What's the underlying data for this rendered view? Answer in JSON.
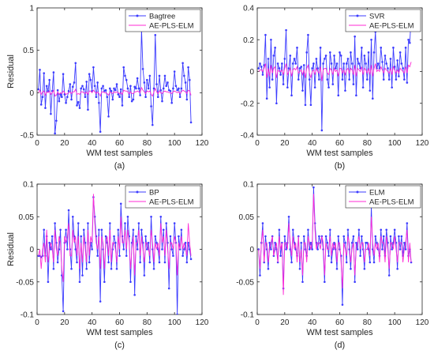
{
  "colors": {
    "blue": "#3b3bff",
    "magenta": "#ff2bd6",
    "axis": "#262626",
    "grid": "#dddddd"
  },
  "chart_data": [
    {
      "type": "line",
      "caption": "(a)",
      "xlabel": "WM test samples",
      "ylabel": "Residual",
      "xlim": [
        0,
        120
      ],
      "ylim": [
        -0.5,
        1
      ],
      "xticks": [
        0,
        20,
        40,
        60,
        80,
        100,
        120
      ],
      "yticks": [
        -0.5,
        0,
        0.5,
        1
      ],
      "ytick_labels": [
        "-0.5",
        "0",
        "0.5",
        "1"
      ],
      "legend_position": "top-right",
      "series": [
        {
          "name": "Bagtree",
          "color": "#3b3bff",
          "marker": true,
          "values": [
            0.04,
            0.27,
            -0.14,
            -0.05,
            0.23,
            -0.18,
            0.08,
            0.02,
            0.15,
            -0.25,
            0.02,
            0.24,
            -0.48,
            -0.33,
            0.03,
            -0.1,
            -0.02,
            -0.05,
            0.22,
            -0.02,
            -0.12,
            -0.05,
            0.02,
            0.1,
            -0.08,
            0.07,
            0.12,
            0.35,
            -0.15,
            -0.11,
            -0.18,
            0.05,
            0.08,
            0.04,
            -0.05,
            0.13,
            -0.2,
            0.22,
            0.15,
            0.02,
            0.3,
            0.08,
            -0.05,
            0.12,
            -0.12,
            -0.46,
            0.05,
            0.08,
            0.02,
            0.03,
            -0.05,
            -0.28,
            0.05,
            0.02,
            -0.08,
            0.05,
            0.03,
            0.1,
            -0.02,
            -0.05,
            0.04,
            -0.15,
            0.3,
            0.2,
            0.15,
            0.05,
            -0.05,
            0.08,
            -0.1,
            -0.08,
            0.07,
            0.05,
            0.17,
            0.05,
            -0.03,
            0.75,
            0.28,
            0.12,
            -0.05,
            0.15,
            0.05,
            0.2,
            -0.16,
            -0.38,
            0.05,
            0.68,
            0.1,
            -0.05,
            0.2,
            0.03,
            -0.1,
            0.05,
            0.2,
            0.08,
            0.12,
            0.03,
            0.02,
            -0.12,
            0.05,
            0.25,
            0.08,
            0.03,
            0.05,
            -0.05,
            0.05,
            0.35,
            0.2,
            0.12,
            -0.08,
            0.3,
            0.15,
            -0.35
          ]
        },
        {
          "name": "AE-PLS-ELM",
          "color": "#ff2bd6",
          "marker": false,
          "values": [
            0.0,
            0.03,
            -0.02,
            0.01,
            0.02,
            -0.03,
            0.01,
            0.0,
            0.02,
            -0.02,
            0.0,
            0.03,
            -0.04,
            -0.03,
            0.01,
            -0.02,
            0.0,
            -0.01,
            0.02,
            0.0,
            -0.02,
            -0.01,
            0.0,
            0.01,
            -0.01,
            0.01,
            0.01,
            0.04,
            -0.02,
            -0.01,
            -0.02,
            0.01,
            0.01,
            0.0,
            -0.01,
            0.01,
            -0.02,
            0.02,
            0.02,
            0.0,
            0.03,
            0.01,
            -0.01,
            0.01,
            -0.01,
            -0.04,
            0.01,
            0.01,
            0.0,
            0.0,
            -0.01,
            -0.03,
            0.01,
            0.0,
            -0.01,
            0.01,
            0.0,
            0.01,
            0.0,
            -0.01,
            0.0,
            -0.02,
            0.03,
            0.02,
            0.02,
            0.01,
            -0.01,
            0.01,
            -0.01,
            -0.01,
            0.01,
            0.01,
            0.02,
            0.01,
            0.0,
            0.06,
            0.03,
            0.01,
            -0.01,
            0.02,
            0.01,
            0.02,
            -0.02,
            -0.04,
            0.01,
            0.05,
            0.01,
            -0.01,
            0.02,
            0.0,
            -0.01,
            0.01,
            0.02,
            0.01,
            0.01,
            0.0,
            0.0,
            -0.01,
            0.01,
            0.02,
            0.01,
            0.0,
            0.01,
            -0.01,
            0.01,
            0.03,
            0.02,
            0.01,
            -0.01,
            0.03,
            0.02,
            -0.03
          ]
        }
      ]
    },
    {
      "type": "line",
      "caption": "(b)",
      "xlabel": "WM test samples",
      "ylabel": "",
      "xlim": [
        0,
        120
      ],
      "ylim": [
        -0.4,
        0.4
      ],
      "xticks": [
        0,
        20,
        40,
        60,
        80,
        100,
        120
      ],
      "yticks": [
        -0.4,
        -0.2,
        0,
        0.2,
        0.4
      ],
      "ytick_labels": [
        "-0.4",
        "-0.2",
        "0",
        "0.2",
        "0.4"
      ],
      "legend_position": "top-right",
      "series": [
        {
          "name": "SVR",
          "color": "#3b3bff",
          "marker": true,
          "values": [
            0.02,
            0.05,
            0.03,
            -0.02,
            0.04,
            0.23,
            -0.17,
            0.08,
            -0.1,
            0.2,
            -0.05,
            0.1,
            0.15,
            -0.2,
            0.05,
            0.02,
            -0.02,
            0.05,
            -0.08,
            0.08,
            0.26,
            -0.1,
            0.02,
            0.1,
            -0.15,
            0.05,
            0.08,
            0.05,
            0.15,
            -0.05,
            0.02,
            0.03,
            -0.12,
            0.04,
            -0.21,
            0.12,
            0.23,
            -0.05,
            -0.21,
            0.02,
            0.05,
            -0.1,
            0.08,
            0.02,
            -0.05,
            0.15,
            -0.37,
            0.05,
            0.08,
            0.1,
            -0.05,
            -0.1,
            0.12,
            0.05,
            -0.08,
            0.1,
            0.02,
            0.05,
            -0.15,
            0.12,
            0.1,
            -0.05,
            0.05,
            -0.12,
            0.05,
            0.08,
            -0.05,
            0.12,
            0.05,
            -0.08,
            0.22,
            -0.15,
            0.08,
            0.05,
            0.02,
            0.15,
            -0.1,
            0.1,
            0.05,
            -0.05,
            0.12,
            -0.12,
            0.2,
            -0.17,
            0.12,
            0.25,
            0.02,
            0.05,
            0.02,
            0.15,
            0.06,
            -0.05,
            0.1,
            0.05,
            0.02,
            -0.05,
            0.08,
            -0.1,
            0.15,
            0.03,
            -0.05,
            0.07,
            -0.03,
            0.12,
            0.05,
            0.02,
            -0.05,
            0.15,
            -0.07,
            0.2,
            0.18,
            0.35
          ]
        },
        {
          "name": "AE-PLS-ELM",
          "color": "#ff2bd6",
          "marker": false,
          "values": [
            0.0,
            0.01,
            0.01,
            0.0,
            0.02,
            0.05,
            -0.04,
            0.02,
            -0.03,
            0.04,
            -0.01,
            0.02,
            0.03,
            -0.04,
            0.01,
            0.0,
            0.0,
            0.01,
            -0.02,
            0.02,
            0.05,
            -0.02,
            0.0,
            0.02,
            -0.03,
            0.01,
            0.02,
            0.01,
            0.03,
            -0.01,
            0.0,
            0.01,
            -0.02,
            0.01,
            -0.04,
            0.02,
            0.04,
            -0.01,
            -0.04,
            0.0,
            0.01,
            -0.02,
            0.02,
            0.0,
            -0.01,
            0.03,
            -0.06,
            0.01,
            0.02,
            0.02,
            -0.01,
            -0.02,
            0.02,
            0.01,
            -0.02,
            0.02,
            0.0,
            0.01,
            -0.03,
            0.02,
            0.02,
            -0.01,
            0.01,
            -0.02,
            0.01,
            0.02,
            -0.01,
            0.02,
            0.01,
            -0.02,
            0.04,
            -0.03,
            0.02,
            0.01,
            0.0,
            0.03,
            -0.02,
            0.02,
            0.01,
            -0.01,
            0.02,
            -0.02,
            0.04,
            -0.03,
            0.02,
            0.05,
            0.0,
            0.01,
            0.0,
            0.03,
            0.01,
            -0.01,
            0.02,
            0.01,
            0.0,
            -0.01,
            0.02,
            -0.02,
            0.03,
            0.01,
            -0.01,
            0.01,
            -0.01,
            0.02,
            0.01,
            0.0,
            -0.01,
            0.03,
            -0.01,
            0.04,
            0.03,
            0.06
          ]
        }
      ]
    },
    {
      "type": "line",
      "caption": "(c)",
      "xlabel": "WM test samples",
      "ylabel": "Residual",
      "xlim": [
        0,
        120
      ],
      "ylim": [
        -0.1,
        0.1
      ],
      "xticks": [
        0,
        20,
        40,
        60,
        80,
        100,
        120
      ],
      "yticks": [
        -0.1,
        -0.05,
        0,
        0.05,
        0.1
      ],
      "ytick_labels": [
        "-0.1",
        "-0.05",
        "0",
        "0.05",
        "0.1"
      ],
      "legend_position": "top-right",
      "series": [
        {
          "name": "BP",
          "color": "#3b3bff",
          "marker": true,
          "values": [
            -0.01,
            -0.01,
            -0.012,
            -0.01,
            0.03,
            -0.01,
            0.02,
            -0.05,
            0.01,
            0.0,
            0.02,
            -0.03,
            0.04,
            0.01,
            -0.02,
            0.0,
            0.03,
            -0.04,
            -0.095,
            0.01,
            0.03,
            0.0,
            0.06,
            0.0,
            -0.03,
            0.05,
            0.02,
            0.0,
            -0.02,
            0.04,
            -0.05,
            0.02,
            -0.04,
            0.03,
            0.01,
            -0.03,
            0.04,
            -0.02,
            0.01,
            0.0,
            0.08,
            0.05,
            0.02,
            -0.01,
            0.03,
            -0.08,
            0.03,
            0.0,
            -0.05,
            0.02,
            0.01,
            -0.02,
            0.04,
            -0.03,
            0.0,
            0.02,
            0.01,
            -0.03,
            0.03,
            -0.01,
            0.07,
            0.02,
            0.0,
            0.04,
            -0.01,
            0.05,
            0.02,
            -0.05,
            0.01,
            0.03,
            -0.07,
            0.02,
            0.0,
            0.04,
            -0.02,
            0.03,
            0.01,
            -0.04,
            0.02,
            0.0,
            0.01,
            -0.02,
            0.05,
            0.0,
            -0.03,
            0.02,
            0.01,
            0.0,
            -0.02,
            0.05,
            0.0,
            0.03,
            -0.02,
            0.04,
            0.01,
            -0.06,
            0.02,
            0.0,
            -0.01,
            0.04,
            0.01,
            -0.1,
            0.02,
            0.0,
            0.03,
            -0.01,
            0.0,
            0.01,
            -0.02,
            0.01,
            0.0,
            -0.015
          ]
        },
        {
          "name": "AE-PLS-ELM",
          "color": "#ff2bd6",
          "marker": false,
          "values": [
            -0.01,
            0.0,
            -0.03,
            0.0,
            0.01,
            -0.02,
            0.03,
            -0.02,
            0.0,
            0.01,
            0.0,
            -0.02,
            0.03,
            0.0,
            -0.01,
            0.02,
            0.01,
            -0.03,
            -0.05,
            0.02,
            0.01,
            0.02,
            0.04,
            -0.01,
            -0.01,
            0.03,
            0.01,
            0.02,
            -0.01,
            0.02,
            -0.03,
            0.01,
            -0.02,
            0.02,
            0.0,
            -0.02,
            0.03,
            -0.01,
            0.02,
            0.01,
            0.085,
            0.04,
            0.01,
            0.0,
            0.02,
            -0.03,
            0.02,
            0.01,
            -0.03,
            0.01,
            0.02,
            -0.01,
            0.03,
            -0.02,
            0.01,
            0.01,
            0.0,
            -0.02,
            0.02,
            0.0,
            0.05,
            0.01,
            0.01,
            0.03,
            0.0,
            0.03,
            0.01,
            -0.03,
            0.0,
            0.02,
            -0.04,
            0.01,
            0.01,
            0.03,
            -0.01,
            0.02,
            0.0,
            -0.02,
            0.01,
            0.01,
            0.0,
            -0.01,
            0.03,
            0.01,
            -0.02,
            0.01,
            0.0,
            0.01,
            -0.01,
            0.04,
            0.01,
            0.02,
            -0.01,
            0.03,
            0.0,
            -0.03,
            0.01,
            0.01,
            0.0,
            0.02,
            0.01,
            -0.04,
            0.01,
            0.0,
            0.02,
            0.0,
            0.01,
            0.0,
            -0.01,
            0.04,
            0.01,
            -0.01
          ]
        }
      ]
    },
    {
      "type": "line",
      "caption": "(d)",
      "xlabel": "WM test samples",
      "ylabel": "",
      "xlim": [
        0,
        120
      ],
      "ylim": [
        -0.1,
        0.1
      ],
      "xticks": [
        0,
        20,
        40,
        60,
        80,
        100,
        120
      ],
      "yticks": [
        -0.1,
        -0.05,
        0,
        0.05,
        0.1
      ],
      "ytick_labels": [
        "-0.1",
        "-0.05",
        "0",
        "0.05",
        "0.1"
      ],
      "legend_position": "top-right",
      "series": [
        {
          "name": "ELM",
          "color": "#3b3bff",
          "marker": true,
          "values": [
            0.0,
            -0.04,
            0.01,
            0.04,
            -0.02,
            0.02,
            0.0,
            -0.03,
            0.01,
            0.0,
            0.02,
            -0.01,
            0.01,
            0.0,
            -0.02,
            0.03,
            -0.01,
            0.01,
            -0.06,
            0.02,
            0.0,
            0.01,
            0.05,
            0.0,
            -0.02,
            0.03,
            0.01,
            0.0,
            -0.01,
            0.02,
            -0.03,
            0.01,
            -0.05,
            0.02,
            0.0,
            -0.01,
            0.03,
            0.0,
            0.01,
            0.0,
            0.095,
            0.04,
            0.01,
            0.0,
            0.02,
            0.01,
            0.02,
            0.0,
            -0.05,
            0.02,
            0.01,
            -0.01,
            0.03,
            -0.02,
            0.0,
            0.01,
            0.0,
            -0.03,
            0.02,
            0.0,
            -0.01,
            -0.085,
            0.02,
            0.01,
            -0.02,
            0.03,
            0.0,
            -0.03,
            0.01,
            0.02,
            -0.05,
            0.01,
            0.0,
            0.03,
            -0.01,
            0.02,
            0.0,
            -0.03,
            0.01,
            0.01,
            0.0,
            -0.02,
            0.065,
            0.0,
            -0.02,
            0.02,
            0.01,
            0.0,
            -0.01,
            0.03,
            0.0,
            0.02,
            -0.01,
            0.03,
            0.01,
            -0.04,
            0.02,
            0.0,
            0.01,
            0.03,
            0.01,
            -0.03,
            0.02,
            0.0,
            0.02,
            -0.01,
            0.01,
            0.0,
            0.04,
            -0.01,
            0.0,
            -0.02
          ]
        },
        {
          "name": "AE-PLS-ELM",
          "color": "#ff2bd6",
          "marker": false,
          "values": [
            0.0,
            -0.03,
            0.01,
            0.03,
            -0.02,
            0.01,
            0.01,
            -0.02,
            0.0,
            0.01,
            0.02,
            -0.01,
            0.0,
            0.01,
            -0.02,
            0.02,
            0.0,
            0.01,
            -0.07,
            0.01,
            0.01,
            0.0,
            0.04,
            0.01,
            -0.01,
            0.02,
            0.0,
            0.01,
            -0.02,
            0.02,
            -0.02,
            0.0,
            -0.04,
            0.01,
            0.01,
            -0.02,
            0.02,
            0.01,
            0.0,
            0.01,
            0.085,
            0.03,
            0.0,
            0.01,
            0.01,
            0.0,
            0.02,
            0.01,
            -0.04,
            0.01,
            0.0,
            0.0,
            0.02,
            -0.01,
            0.01,
            0.0,
            0.01,
            -0.02,
            0.01,
            0.01,
            -0.02,
            -0.06,
            0.01,
            0.0,
            -0.01,
            0.02,
            0.01,
            -0.02,
            0.0,
            0.01,
            -0.04,
            0.0,
            0.01,
            0.02,
            0.0,
            0.01,
            0.01,
            -0.02,
            0.0,
            0.0,
            0.01,
            -0.01,
            0.05,
            0.01,
            -0.01,
            0.01,
            0.0,
            0.01,
            -0.02,
            0.02,
            0.01,
            0.01,
            -0.02,
            0.02,
            0.0,
            -0.03,
            0.01,
            0.01,
            0.0,
            0.02,
            0.0,
            -0.02,
            0.01,
            0.01,
            0.01,
            -0.02,
            0.0,
            0.01,
            0.03,
            -0.02,
            0.01,
            -0.02
          ]
        }
      ]
    }
  ]
}
